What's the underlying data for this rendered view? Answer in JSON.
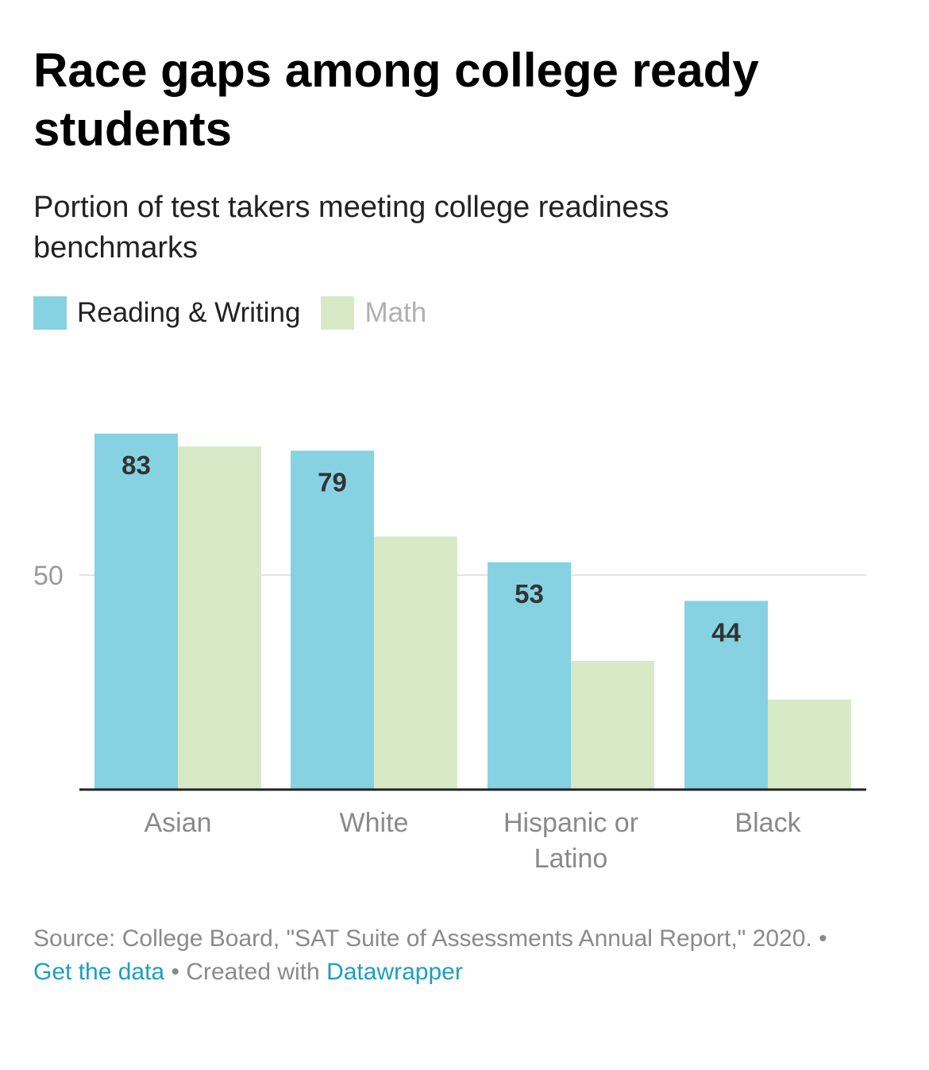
{
  "header": {
    "title": "Race gaps among college ready students",
    "subtitle": "Portion of test takers meeting college readiness benchmarks"
  },
  "legend": [
    {
      "label": "Reading & Writing",
      "color": "#86d2e2",
      "text_color": "#222222"
    },
    {
      "label": "Math",
      "color": "#d8e9c7",
      "text_color": "#b0b0b0"
    }
  ],
  "chart_data": {
    "type": "bar",
    "categories": [
      "Asian",
      "White",
      "Hispanic or Latino",
      "Black"
    ],
    "category_lines": [
      [
        "Asian"
      ],
      [
        "White"
      ],
      [
        "Hispanic or",
        "Latino"
      ],
      [
        "Black"
      ]
    ],
    "series": [
      {
        "name": "Reading & Writing",
        "values": [
          83,
          79,
          53,
          44
        ],
        "color": "#86d2e2",
        "labeled": true
      },
      {
        "name": "Math",
        "values": [
          80,
          59,
          30,
          21
        ],
        "color": "#d8e9c7",
        "labeled": false
      }
    ],
    "y_ticks": [
      50
    ],
    "ylim": [
      0,
      100
    ],
    "grid": true,
    "legend_position": "top-left"
  },
  "footer": {
    "source_text": "Source: College Board, \"SAT Suite of Assessments Annual Report,\" 2020.",
    "separator": " • ",
    "get_data_label": "Get the data",
    "created_with_text": "Created with ",
    "datawrapper_label": "Datawrapper"
  }
}
